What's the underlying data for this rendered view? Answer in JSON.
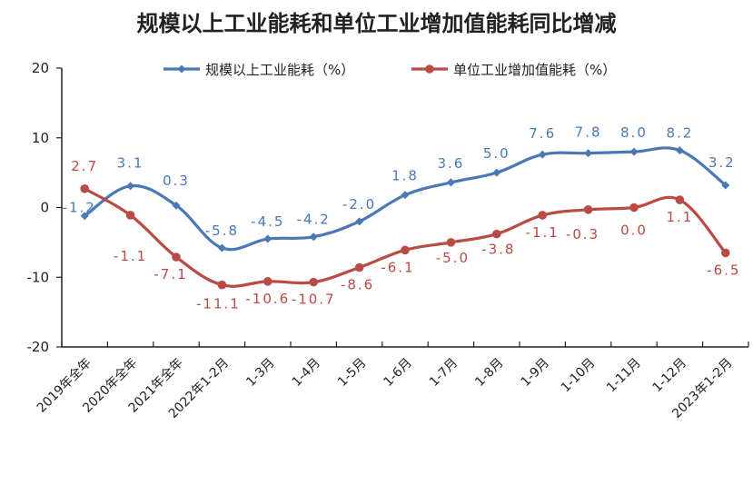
{
  "chart_data": {
    "type": "line",
    "title": "规模以上工业能耗和单位工业增加值能耗同比增减",
    "xlabel": "",
    "ylabel": "",
    "ylim": [
      -20,
      20
    ],
    "yticks": [
      -20,
      -10,
      0,
      10,
      20
    ],
    "grid": false,
    "legend_position": "top",
    "categories": [
      "2019年全年",
      "2020年全年",
      "2021年全年",
      "2022年1-2月",
      "1-3月",
      "1-4月",
      "1-5月",
      "1-6月",
      "1-7月",
      "1-8月",
      "1-9月",
      "1-10月",
      "1-11月",
      "1-12月",
      "2023年1-2月"
    ],
    "series": [
      {
        "name": "规模以上工业能耗（%）",
        "color": "#4a78b5",
        "values": [
          -1.2,
          3.1,
          0.3,
          -5.8,
          -4.5,
          -4.2,
          -2.0,
          1.8,
          3.6,
          5.0,
          7.6,
          7.8,
          8.0,
          8.2,
          3.2
        ],
        "labels": [
          "-1.2",
          "3.1",
          "0.3",
          "-5.8",
          "-4.5",
          "-4.2",
          "-2.0",
          "1.8",
          "3.6",
          "5.0",
          "7.6",
          "7.8",
          "8.0",
          "8.2",
          "3.2"
        ]
      },
      {
        "name": "单位工业增加值能耗（%）",
        "color": "#b94a44",
        "values": [
          2.7,
          -1.1,
          -7.1,
          -11.1,
          -10.6,
          -10.7,
          -8.6,
          -6.1,
          -5.0,
          -3.8,
          -1.1,
          -0.3,
          0.0,
          1.1,
          -6.5
        ],
        "labels": [
          "2.7",
          "-1.1",
          "-7.1",
          "-11.1",
          "-10.6",
          "-10.7",
          "-8.6",
          "-6.1",
          "-5.0",
          "-3.8",
          "-1.1",
          "-0.3",
          "0.0",
          "1.1",
          "-6.5"
        ]
      }
    ]
  }
}
